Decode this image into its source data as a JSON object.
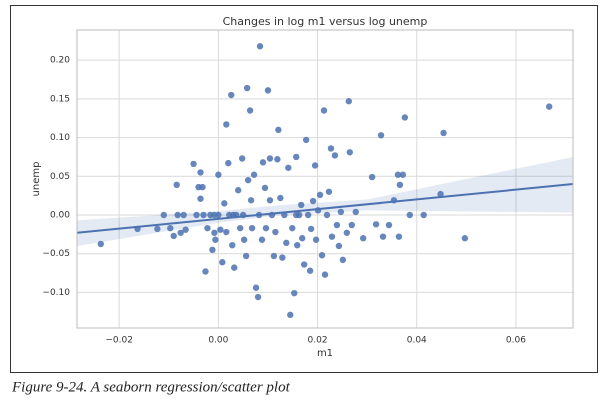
{
  "chart_data": {
    "type": "scatter",
    "title": "Changes in log m1 versus log unemp",
    "x_label": "m1",
    "y_label": "unemp",
    "color": "#4c72b0",
    "grid": true,
    "xlim": [
      -0.0285,
      0.0715
    ],
    "ylim": [
      -0.146,
      0.239
    ],
    "xticks": [
      {
        "value": -0.02,
        "label": "−0.02"
      },
      {
        "value": 0,
        "label": "0.00"
      },
      0.02,
      0.04,
      0.06
    ],
    "yticks": [
      {
        "value": -0.1,
        "label": "−0.10"
      },
      {
        "value": -0.05,
        "label": "−0.05"
      },
      {
        "value": 0,
        "label": "0.00"
      },
      0.05,
      {
        "value": 0.1,
        "label": "0.10"
      },
      0.15,
      {
        "value": 0.2,
        "label": "0.20"
      }
    ],
    "x": [
      -0.0237,
      -0.0163,
      -0.0123,
      -0.011,
      -0.0097,
      -0.009,
      -0.0084,
      -0.0082,
      -0.0076,
      -0.007,
      -0.0066,
      -0.005,
      -0.0044,
      -0.004,
      -0.0036,
      -0.0036,
      -0.0032,
      -0.003,
      -0.0026,
      -0.0022,
      -0.0016,
      -0.0012,
      -0.0008,
      -0.0006,
      0,
      0,
      0.0004,
      0.0008,
      0.0012,
      0.0016,
      0.0016,
      0.002,
      0.0022,
      0.0026,
      0.0028,
      0.0032,
      0.0036,
      0.004,
      0.0044,
      0.0048,
      0.005,
      0.0052,
      0.0056,
      0.0058,
      0.006,
      0.0064,
      0.0066,
      0.0068,
      0.0072,
      0.0076,
      0.008,
      0.0082,
      0.0084,
      0.0088,
      0.009,
      0.0094,
      0.0096,
      0.01,
      0.0104,
      0.0108,
      0.0112,
      0.0115,
      0.0119,
      0.0121,
      0.0125,
      0.0129,
      0.0133,
      0.0137,
      0.0141,
      0.0145,
      0.0149,
      0.0153,
      0.0157,
      0.0159,
      0.0163,
      0.0167,
      0.0169,
      0.0173,
      0.0177,
      0.0181,
      0.0185,
      0.0187,
      0.0191,
      0.0195,
      0.0197,
      0.0201,
      0.0205,
      0.0209,
      0.0213,
      0.0215,
      0.0219,
      0.0223,
      0.0227,
      0.0229,
      0.0235,
      0.0239,
      0.0243,
      0.0247,
      0.0251,
      0.0259,
      0.0263,
      0.0265,
      0.0269,
      0.0277,
      0.0292,
      0.031,
      0.0318,
      0.0328,
      0.0332,
      0.0344,
      0.0354,
      0.0362,
      0.0364,
      0.0366,
      0.0372,
      0.0376,
      0.0386,
      0.0414,
      0.0448,
      0.0454,
      0.0497,
      0.0667,
      -0.0008,
      0.003,
      0.0104,
      0.0157
    ],
    "values": [
      -0.0374,
      -0.018,
      -0.018,
      0,
      -0.017,
      -0.027,
      0.039,
      0,
      -0.023,
      0,
      -0.019,
      0.066,
      0,
      0.036,
      0.055,
      0.021,
      0.036,
      0,
      -0.073,
      -0.017,
      0,
      -0.045,
      -0.023,
      -0.032,
      0.052,
      0,
      -0.019,
      -0.061,
      0.015,
      0.117,
      -0.022,
      0.067,
      0,
      0.155,
      -0.039,
      -0.068,
      0,
      0.032,
      -0.017,
      0.073,
      0,
      -0.032,
      -0.053,
      0.164,
      0.045,
      0.135,
      0.019,
      -0.017,
      0.052,
      -0.094,
      -0.106,
      0,
      0.218,
      -0.032,
      0.068,
      0.035,
      -0.017,
      0.161,
      0.073,
      0,
      -0.053,
      -0.022,
      0.072,
      0.11,
      0.022,
      -0.055,
      0,
      -0.036,
      0.061,
      -0.129,
      -0.017,
      -0.101,
      0.075,
      -0.039,
      0,
      0.013,
      -0.03,
      -0.064,
      0.097,
      0,
      -0.072,
      -0.018,
      0.018,
      0.064,
      -0.032,
      0.006,
      0.026,
      -0.052,
      0.135,
      -0.077,
      0,
      0.03,
      0.086,
      -0.028,
      0.077,
      -0.013,
      -0.04,
      0.004,
      -0.058,
      -0.023,
      0.147,
      0.081,
      -0.013,
      0.004,
      -0.03,
      0.049,
      -0.012,
      0.103,
      -0.028,
      -0.013,
      0.019,
      0.052,
      -0.028,
      0.039,
      0.052,
      0.126,
      0,
      0,
      0.027,
      0.106,
      -0.03,
      0.14,
      0,
      0,
      0.019,
      0
    ],
    "regression": {
      "x": [
        -0.0285,
        0.0715
      ],
      "y": [
        -0.023,
        0.04
      ]
    },
    "ci_band": {
      "x": [
        -0.0285,
        0,
        0.012,
        0.03,
        0.0715
      ],
      "lower": [
        -0.04,
        -0.01,
        -0.0005,
        0.006,
        0.003
      ],
      "upper": [
        -0.007,
        0.005,
        0.0125,
        0.02,
        0.075
      ]
    }
  },
  "caption": "Figure 9-24. A seaborn regression/scatter plot"
}
